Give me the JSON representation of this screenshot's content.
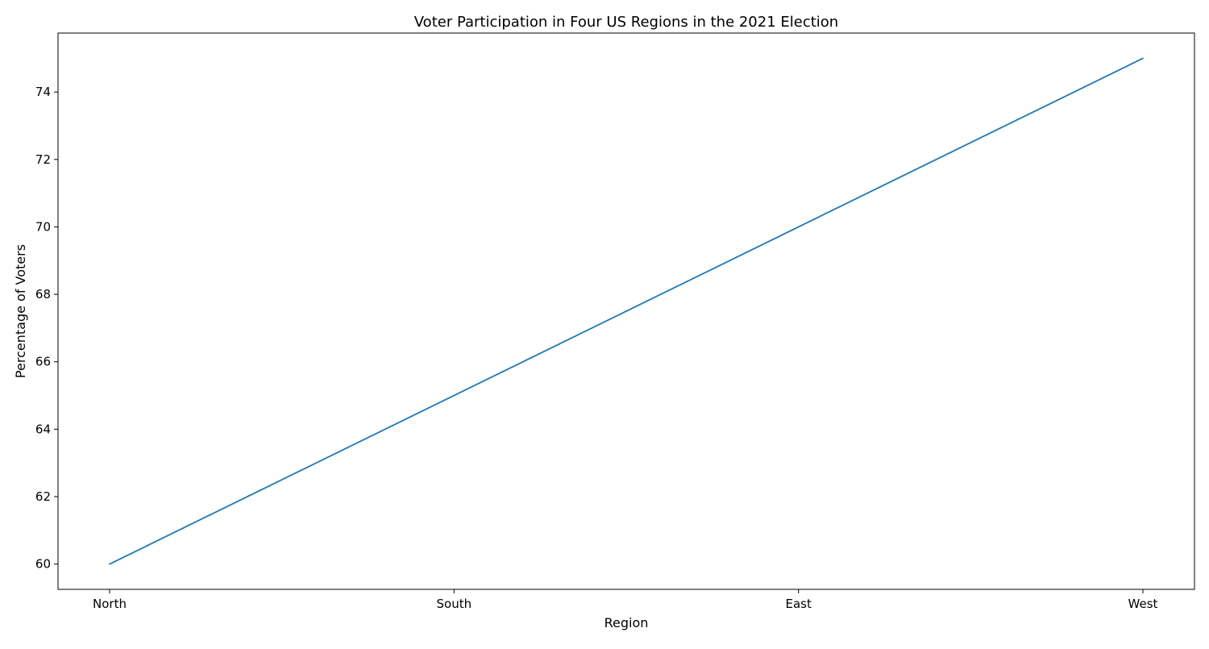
{
  "chart_data": {
    "type": "line",
    "title": "Voter Participation in Four US Regions in the 2021 Election",
    "xlabel": "Region",
    "ylabel": "Percentage of Voters",
    "categories": [
      "North",
      "South",
      "East",
      "West"
    ],
    "series": [
      {
        "values": [
          60,
          65,
          70,
          75
        ],
        "color": "#1f77b4"
      }
    ],
    "ylim": [
      59.25,
      75.75
    ],
    "yticks": [
      "60",
      "62",
      "64",
      "66",
      "68",
      "70",
      "72",
      "74"
    ],
    "grid": false,
    "legend": "none"
  }
}
